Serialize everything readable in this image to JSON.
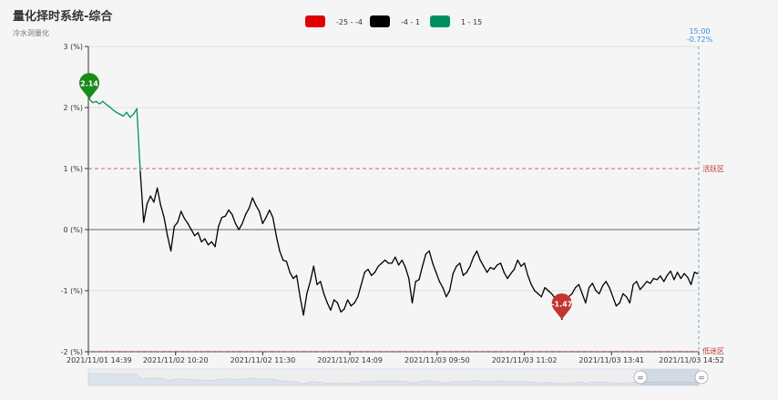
{
  "header": {
    "title": "量化择时系统-综合",
    "subtitle": "冷水洞量化"
  },
  "legend": [
    {
      "label": "-25 - -4",
      "color": "#e00000"
    },
    {
      "label": "-4 - 1",
      "color": "#000000"
    },
    {
      "label": "1 - 15",
      "color": "#009060"
    }
  ],
  "zones": {
    "upper_label": "活跃区",
    "lower_label": "低迷区",
    "upper_value": 1,
    "lower_value": -2
  },
  "crosshair": {
    "time": "15:00",
    "value": "-0.72%"
  },
  "markers": {
    "max": {
      "label": "2.14",
      "color": "#1a8a1a"
    },
    "min": {
      "label": "-1.47",
      "color": "#c23531"
    }
  },
  "slider": {
    "handle_left": "=",
    "handle_right": "="
  },
  "chart_data": {
    "type": "line",
    "title": "量化择时系统-综合",
    "subtitle": "冷水洞量化",
    "ylabel": "",
    "ylim": [
      -2,
      3
    ],
    "y_ticks": [
      "3 (%)",
      "2 (%)",
      "1 (%)",
      "0 (%)",
      "-1 (%)",
      "-2 (%)"
    ],
    "x_ticks": [
      "2021/11/01 14:39",
      "2021/11/02 10:20",
      "2021/11/02 11:30",
      "2021/11/02 14:09",
      "2021/11/03 09:50",
      "2021/11/03 11:02",
      "2021/11/03 13:41",
      "2021/11/03 14:52"
    ],
    "reference_lines": [
      {
        "value": 1,
        "label": "活跃区"
      },
      {
        "value": -2,
        "label": "低迷区"
      }
    ],
    "visual_map": [
      {
        "range": [
          -25,
          -4
        ],
        "color": "#e00000"
      },
      {
        "range": [
          -4,
          1
        ],
        "color": "#000000"
      },
      {
        "range": [
          1,
          15
        ],
        "color": "#009060"
      }
    ],
    "series": [
      {
        "values": [
          2.14,
          2.08,
          2.1,
          2.06,
          2.1,
          2.05,
          2.01,
          1.96,
          1.92,
          1.89,
          1.86,
          1.92,
          1.84,
          1.89,
          1.98,
          0.95,
          0.12,
          0.42,
          0.55,
          0.45,
          0.68,
          0.4,
          0.2,
          -0.1,
          -0.35,
          0.05,
          0.12,
          0.3,
          0.18,
          0.1,
          0.0,
          -0.1,
          -0.05,
          -0.2,
          -0.15,
          -0.25,
          -0.2,
          -0.28,
          0.05,
          0.2,
          0.22,
          0.32,
          0.25,
          0.1,
          0.0,
          0.1,
          0.25,
          0.35,
          0.52,
          0.4,
          0.3,
          0.1,
          0.2,
          0.32,
          0.2,
          -0.1,
          -0.35,
          -0.5,
          -0.52,
          -0.7,
          -0.8,
          -0.75,
          -1.1,
          -1.4,
          -1.05,
          -0.85,
          -0.6,
          -0.9,
          -0.85,
          -1.05,
          -1.2,
          -1.32,
          -1.15,
          -1.2,
          -1.35,
          -1.3,
          -1.15,
          -1.25,
          -1.2,
          -1.1,
          -0.9,
          -0.7,
          -0.65,
          -0.75,
          -0.7,
          -0.6,
          -0.55,
          -0.5,
          -0.55,
          -0.55,
          -0.45,
          -0.58,
          -0.5,
          -0.62,
          -0.8,
          -1.2,
          -0.85,
          -0.82,
          -0.6,
          -0.4,
          -0.35,
          -0.55,
          -0.7,
          -0.85,
          -0.95,
          -1.1,
          -1.0,
          -0.72,
          -0.6,
          -0.55,
          -0.75,
          -0.7,
          -0.6,
          -0.45,
          -0.35,
          -0.5,
          -0.6,
          -0.7,
          -0.62,
          -0.65,
          -0.58,
          -0.55,
          -0.7,
          -0.8,
          -0.72,
          -0.65,
          -0.5,
          -0.6,
          -0.55,
          -0.75,
          -0.9,
          -1.0,
          -1.05,
          -1.1,
          -0.95,
          -1.0,
          -1.05,
          -1.12,
          -1.2,
          -1.47,
          -1.2,
          -1.1,
          -1.05,
          -0.95,
          -0.9,
          -1.05,
          -1.2,
          -0.95,
          -0.88,
          -1.0,
          -1.05,
          -0.92,
          -0.85,
          -0.95,
          -1.1,
          -1.25,
          -1.2,
          -1.05,
          -1.1,
          -1.2,
          -0.9,
          -0.85,
          -0.98,
          -0.92,
          -0.85,
          -0.88,
          -0.8,
          -0.82,
          -0.76,
          -0.85,
          -0.75,
          -0.68,
          -0.82,
          -0.7,
          -0.8,
          -0.72,
          -0.78,
          -0.9,
          -0.7,
          -0.72
        ]
      }
    ]
  }
}
